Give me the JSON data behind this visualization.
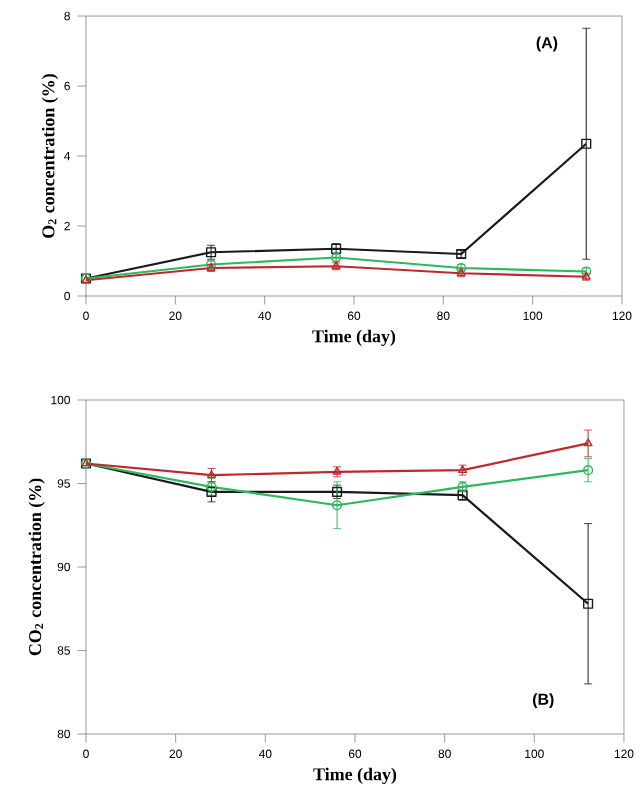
{
  "chart_data": [
    {
      "type": "line",
      "xlabel": "Time  (day)",
      "ylabel": "O$_{2}$ concentration  (%)",
      "annotations": [
        "(A)"
      ],
      "x": [
        0,
        28,
        56,
        84,
        112
      ],
      "xlim": [
        0,
        120
      ],
      "xticks": [
        0,
        20,
        40,
        60,
        80,
        100,
        120
      ],
      "ylim": [
        0,
        8
      ],
      "yticks": [
        0,
        2,
        4,
        6,
        8
      ],
      "line_style": "solid",
      "series": [
        {
          "color": "#1a1a1a",
          "marker": "square",
          "values": [
            0.5,
            1.25,
            1.35,
            1.2,
            4.35
          ],
          "errors": [
            null,
            0.2,
            0.15,
            0.1,
            3.3
          ]
        },
        {
          "color": "#2eb85c",
          "marker": "circle",
          "values": [
            0.5,
            0.9,
            1.1,
            0.8,
            0.7
          ],
          "errors": [
            null,
            0.1,
            0.1,
            0.1,
            0.1
          ]
        },
        {
          "color": "#c0282d",
          "marker": "triangle",
          "values": [
            0.45,
            0.8,
            0.85,
            0.65,
            0.55
          ],
          "errors": [
            null,
            0.1,
            0.1,
            0.1,
            0.1
          ]
        }
      ]
    },
    {
      "type": "line",
      "xlabel": "Time  (day)",
      "ylabel": "CO$_{2}$ concentration  (%)",
      "annotations": [
        "(B)"
      ],
      "x": [
        0,
        28,
        56,
        84,
        112
      ],
      "xlim": [
        0,
        120
      ],
      "xticks": [
        0,
        20,
        40,
        60,
        80,
        100,
        120
      ],
      "ylim": [
        80,
        100
      ],
      "yticks": [
        80,
        85,
        90,
        95,
        100
      ],
      "line_style": "solid",
      "series": [
        {
          "color": "#1a1a1a",
          "marker": "square",
          "values": [
            96.2,
            94.5,
            94.5,
            94.3,
            87.8
          ],
          "errors": [
            null,
            0.6,
            0.4,
            0.3,
            4.8
          ]
        },
        {
          "color": "#2eb85c",
          "marker": "circle",
          "values": [
            96.2,
            94.8,
            93.7,
            94.8,
            95.8
          ],
          "errors": [
            null,
            0.5,
            1.4,
            0.3,
            0.7
          ]
        },
        {
          "color": "#c0282d",
          "marker": "triangle",
          "values": [
            96.2,
            95.5,
            95.7,
            95.8,
            97.4
          ],
          "errors": [
            null,
            0.4,
            0.3,
            0.3,
            0.8
          ]
        }
      ]
    }
  ]
}
